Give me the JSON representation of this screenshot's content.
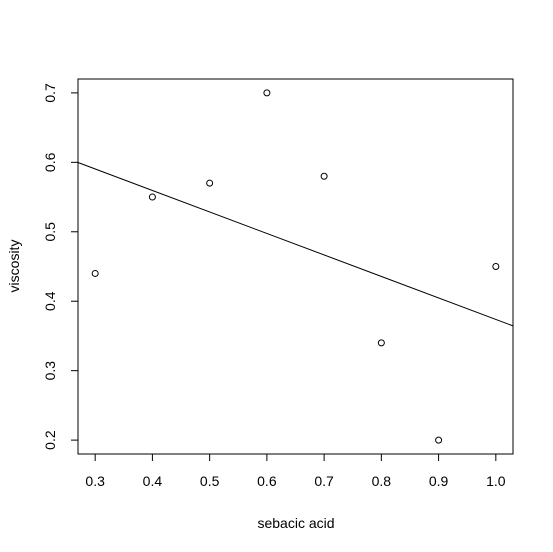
{
  "chart_data": {
    "type": "scatter",
    "title": "",
    "xlabel": "sebacic acid",
    "ylabel": "viscosity",
    "xlim": [
      0.27,
      1.03
    ],
    "ylim": [
      0.18,
      0.72
    ],
    "xticks": [
      0.3,
      0.4,
      0.5,
      0.6,
      0.7,
      0.8,
      0.9,
      1.0
    ],
    "xtick_labels": [
      "0.3",
      "0.4",
      "0.5",
      "0.6",
      "0.7",
      "0.8",
      "0.9",
      "1.0"
    ],
    "yticks": [
      0.2,
      0.3,
      0.4,
      0.5,
      0.6,
      0.7
    ],
    "ytick_labels": [
      "0.2",
      "0.3",
      "0.4",
      "0.5",
      "0.6",
      "0.7"
    ],
    "grid": false,
    "legend": "none",
    "series": [
      {
        "marker": "open-circle",
        "x": [
          0.3,
          0.4,
          0.5,
          0.6,
          0.7,
          0.8,
          0.9,
          1.0
        ],
        "y": [
          0.44,
          0.55,
          0.57,
          0.7,
          0.58,
          0.34,
          0.2,
          0.45
        ]
      }
    ],
    "fit_line": {
      "type": "linear",
      "intercept": 0.6833,
      "slope": -0.3095
    },
    "colors": {
      "points": "#000000",
      "line": "#000000",
      "axes": "#000000"
    }
  }
}
